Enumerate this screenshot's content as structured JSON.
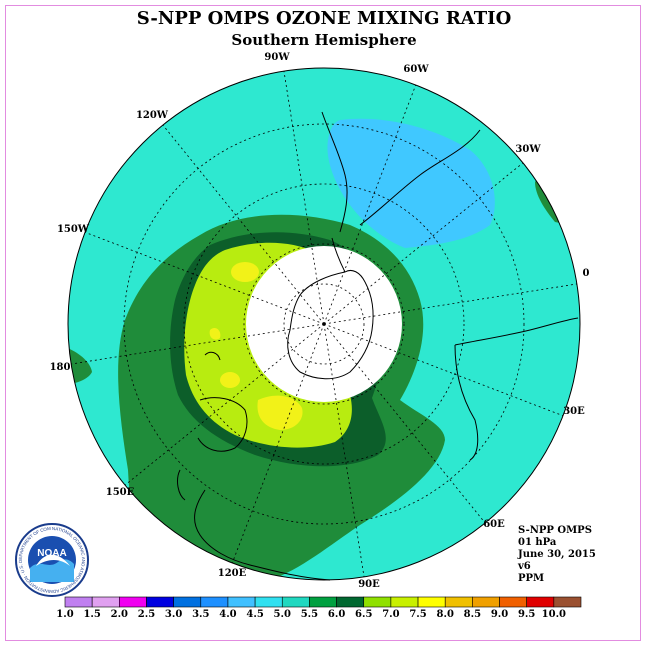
{
  "header": {
    "title": "S-NPP OMPS OZONE MIXING RATIO",
    "subtitle": "Southern Hemisphere"
  },
  "longitude_labels": [
    "90W",
    "60W",
    "30W",
    "0",
    "30E",
    "60E",
    "90E",
    "120E",
    "150E",
    "180",
    "150W",
    "120W"
  ],
  "info": {
    "line1": "S-NPP OMPS",
    "line2": "01 hPa",
    "line3": "June 30, 2015",
    "line4": "v6",
    "line5": "PPM"
  },
  "scale": {
    "labels": [
      "1.0",
      "1.5",
      "2.0",
      "2.5",
      "3.0",
      "3.5",
      "4.0",
      "4.5",
      "5.0",
      "5.5",
      "6.0",
      "6.5",
      "7.0",
      "7.5",
      "8.0",
      "8.5",
      "9.0",
      "9.5",
      "10.0"
    ],
    "colors": [
      "#c080f0",
      "#e0a0f0",
      "#f000f0",
      "#0000e0",
      "#0070e0",
      "#1e90ff",
      "#40c0ff",
      "#30e0f0",
      "#20d8c0",
      "#00a040",
      "#006830",
      "#90e000",
      "#c8f000",
      "#ffff00",
      "#f0c000",
      "#f0a000",
      "#f06000",
      "#e00000",
      "#9a5030"
    ]
  },
  "logo": {
    "text": "NOAA",
    "ring_text": "NATIONAL OCEANIC AND ATMOSPHERIC ADMINISTRATION · U.S. DEPARTMENT OF COMMERCE"
  },
  "colors": {
    "background_field": "#2ee8d0",
    "low_region": "#40c8ff",
    "mid_green": "#1f8c3a",
    "dark_green": "#0c5e2a",
    "lime": "#b8ec10",
    "yellow": "#f2f218",
    "polar_night": "#ffffff"
  }
}
